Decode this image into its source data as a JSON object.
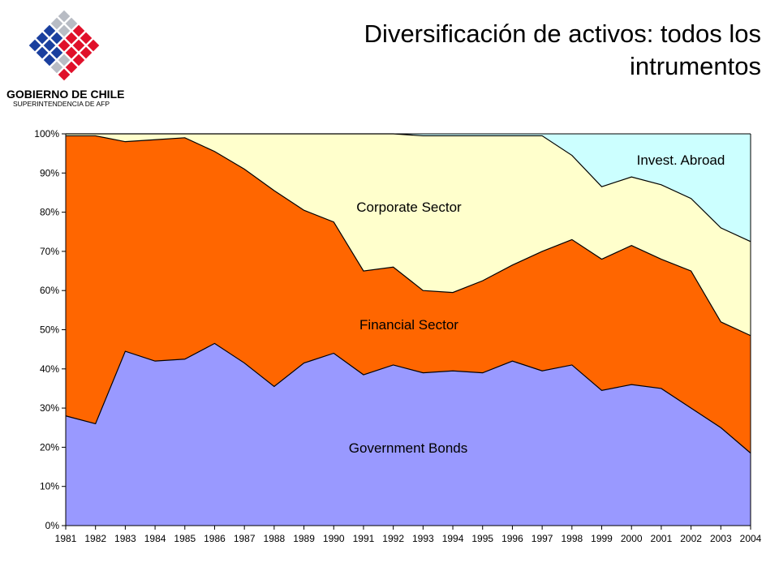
{
  "header": {
    "title": "Diversificación de activos:  todos los intrumentos",
    "logo_line1": "GOBIERNO DE CHILE",
    "logo_line2": "SUPERINTENDENCIA DE AFP"
  },
  "colors": {
    "government": "#9999ff",
    "financial": "#ff6600",
    "corporate": "#ffffcc",
    "abroad": "#ccffff",
    "logo_red": "#e0102a",
    "logo_blue": "#1a3f9e"
  },
  "chart_data": {
    "type": "area",
    "stacked": true,
    "categories": [
      "1981",
      "1982",
      "1983",
      "1984",
      "1985",
      "1986",
      "1987",
      "1988",
      "1989",
      "1990",
      "1991",
      "1992",
      "1993",
      "1994",
      "1995",
      "1996",
      "1997",
      "1998",
      "1999",
      "2000",
      "2001",
      "2002",
      "2003",
      "2004"
    ],
    "yticks": [
      "0%",
      "10%",
      "20%",
      "30%",
      "40%",
      "50%",
      "60%",
      "70%",
      "80%",
      "90%",
      "100%"
    ],
    "ylim": [
      0,
      100
    ],
    "grid": false,
    "series": [
      {
        "key": "government",
        "name": "Government Bonds",
        "values": [
          28,
          26,
          44.5,
          42,
          42.5,
          46.5,
          41.5,
          35.5,
          41.5,
          44,
          38.5,
          41,
          39,
          39.5,
          39,
          42,
          39.5,
          41,
          34.5,
          36,
          35,
          30,
          25,
          18.5
        ]
      },
      {
        "key": "financial",
        "name": "Financial Sector",
        "values": [
          71.5,
          73.5,
          53.5,
          56.5,
          56.5,
          49,
          49.5,
          50,
          39,
          33.5,
          26.5,
          25,
          21,
          20,
          23.5,
          24.5,
          30.5,
          32,
          33.5,
          35.5,
          33,
          35,
          27,
          30
        ]
      },
      {
        "key": "corporate",
        "name": "Corporate Sector",
        "values": [
          0.5,
          0.5,
          2,
          1.5,
          1,
          4.5,
          9,
          14.5,
          19.5,
          22.5,
          35,
          34,
          39.5,
          40,
          37,
          33,
          29.5,
          21.5,
          18.5,
          17.5,
          19,
          18.5,
          24,
          24
        ]
      },
      {
        "key": "abroad",
        "name": "Invest. Abroad",
        "values": [
          0,
          0,
          0,
          0,
          0,
          0,
          0,
          0,
          0,
          0,
          0,
          0,
          0.5,
          0.5,
          0.5,
          0.5,
          0.5,
          5.5,
          13.5,
          11,
          13,
          16.5,
          24,
          27.5
        ]
      }
    ]
  }
}
